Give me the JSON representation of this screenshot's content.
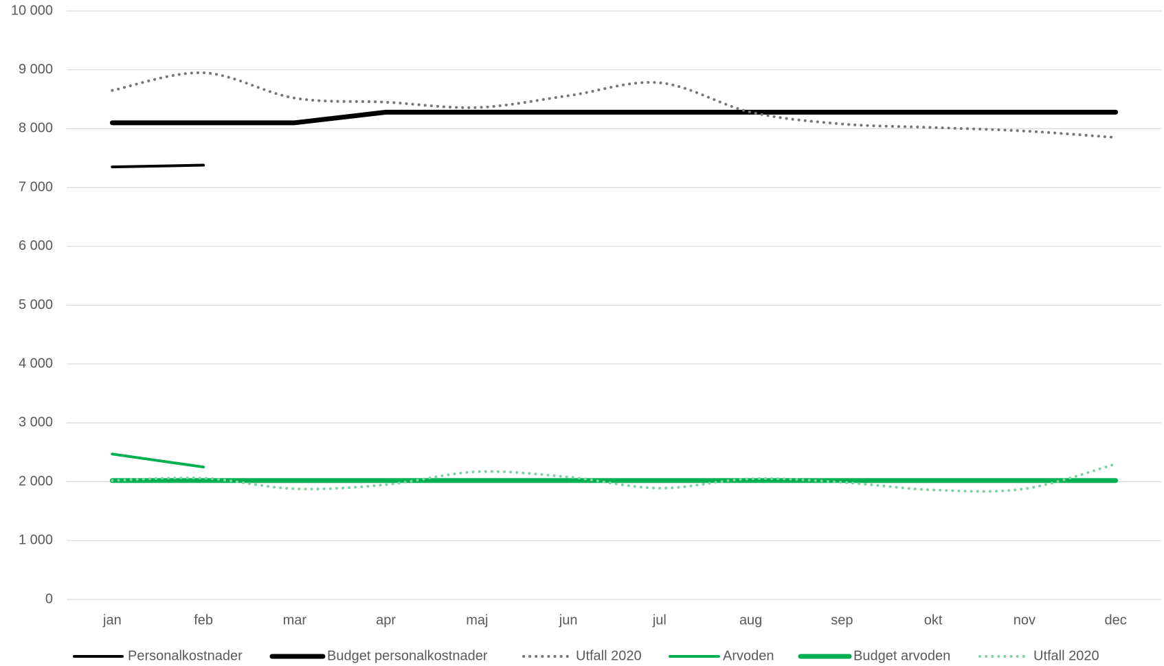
{
  "chart_data": {
    "type": "line",
    "categories": [
      "jan",
      "feb",
      "mar",
      "apr",
      "maj",
      "jun",
      "jul",
      "aug",
      "sep",
      "okt",
      "nov",
      "dec"
    ],
    "ylim": [
      0,
      10000
    ],
    "yticks": [
      0,
      {
        "value": 1000,
        "label": "1 000"
      },
      {
        "value": 2000,
        "label": "2 000"
      },
      {
        "value": 3000,
        "label": "3 000"
      },
      {
        "value": 4000,
        "label": "4 000"
      },
      {
        "value": 5000,
        "label": "5 000"
      },
      {
        "value": 6000,
        "label": "6 000"
      },
      {
        "value": 7000,
        "label": "7 000"
      },
      {
        "value": 8000,
        "label": "8 000"
      },
      {
        "value": 9000,
        "label": "9 000"
      },
      {
        "value": 10000,
        "label": "10 000"
      }
    ],
    "grid": true,
    "legend": "bottom",
    "series": [
      {
        "name": "Personalkostnader",
        "color": "#000000",
        "style": "thin",
        "values": [
          7350,
          7380,
          null,
          null,
          null,
          null,
          null,
          null,
          null,
          null,
          null,
          null
        ]
      },
      {
        "name": "Budget personalkostnader",
        "color": "#000000",
        "style": "thick",
        "values": [
          8100,
          8100,
          8100,
          8280,
          8280,
          8280,
          8280,
          8280,
          8280,
          8280,
          8280,
          8280
        ]
      },
      {
        "name": "Utfall 2020",
        "color": "#767676",
        "style": "dotted",
        "values": [
          8650,
          8950,
          8520,
          8450,
          8360,
          8560,
          8780,
          8280,
          8080,
          8020,
          7960,
          7850
        ]
      },
      {
        "name": "Arvoden",
        "color": "#00b050",
        "style": "thin",
        "values": [
          2470,
          2250,
          null,
          null,
          null,
          null,
          null,
          null,
          null,
          null,
          null,
          null
        ]
      },
      {
        "name": "Budget arvoden",
        "color": "#00b050",
        "style": "thick",
        "values": [
          2020,
          2020,
          2020,
          2020,
          2020,
          2020,
          2020,
          2020,
          2020,
          2020,
          2020,
          2020
        ]
      },
      {
        "name": "Utfall 2020",
        "color": "#7fd3a3",
        "style": "dotted",
        "values": [
          2020,
          2060,
          1880,
          1950,
          2170,
          2080,
          1890,
          2050,
          1990,
          1860,
          1880,
          2300
        ]
      }
    ]
  }
}
